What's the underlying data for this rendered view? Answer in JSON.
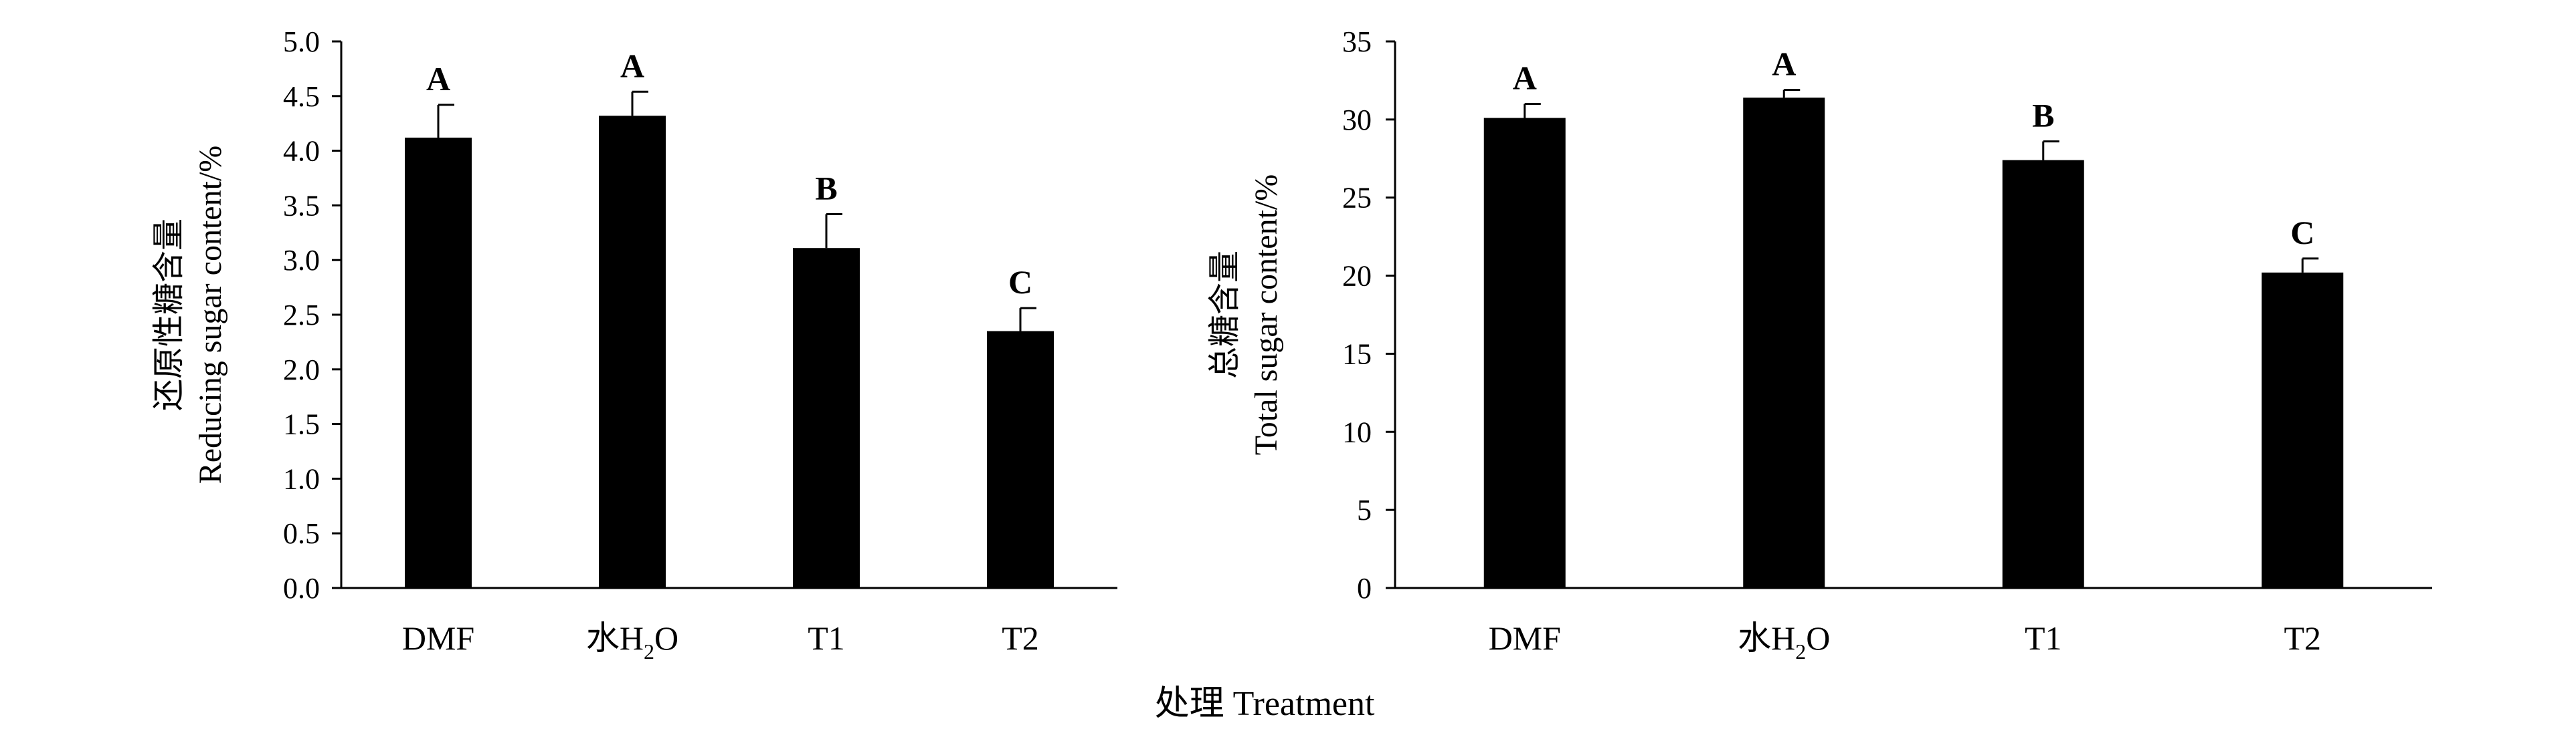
{
  "x_axis_title": "处理 Treatment",
  "chart_data": [
    {
      "type": "bar",
      "categories": [
        {
          "main": "DMF",
          "sub": "",
          "tail": ""
        },
        {
          "main": "水H",
          "sub": "2",
          "tail": "O"
        },
        {
          "main": "T1",
          "sub": "",
          "tail": ""
        },
        {
          "main": "T2",
          "sub": "",
          "tail": ""
        }
      ],
      "values": [
        4.12,
        4.32,
        3.11,
        2.35
      ],
      "errors": [
        0.3,
        0.22,
        0.31,
        0.21
      ],
      "significance": [
        "A",
        "A",
        "B",
        "C"
      ],
      "ylabel_cn": "还原性糖含量",
      "ylabel_en": "Reducing sugar content/%",
      "ylim": [
        0,
        5.0
      ],
      "yticks": [
        0,
        0.5,
        1.0,
        1.5,
        2.0,
        2.5,
        3.0,
        3.5,
        4.0,
        4.5,
        5.0
      ],
      "ytick_decimals": 1,
      "grid": false
    },
    {
      "type": "bar",
      "categories": [
        {
          "main": "DMF",
          "sub": "",
          "tail": ""
        },
        {
          "main": "水H",
          "sub": "2",
          "tail": "O"
        },
        {
          "main": "T1",
          "sub": "",
          "tail": ""
        },
        {
          "main": "T2",
          "sub": "",
          "tail": ""
        }
      ],
      "values": [
        30.1,
        31.4,
        27.4,
        20.2
      ],
      "errors": [
        0.9,
        0.5,
        1.2,
        0.9
      ],
      "significance": [
        "A",
        "A",
        "B",
        "C"
      ],
      "ylabel_cn": "总糖含量",
      "ylabel_en": "Total sugar content/%",
      "ylim": [
        0,
        35
      ],
      "yticks": [
        0,
        5,
        10,
        15,
        20,
        25,
        30,
        35
      ],
      "ytick_decimals": 0,
      "grid": false
    }
  ]
}
